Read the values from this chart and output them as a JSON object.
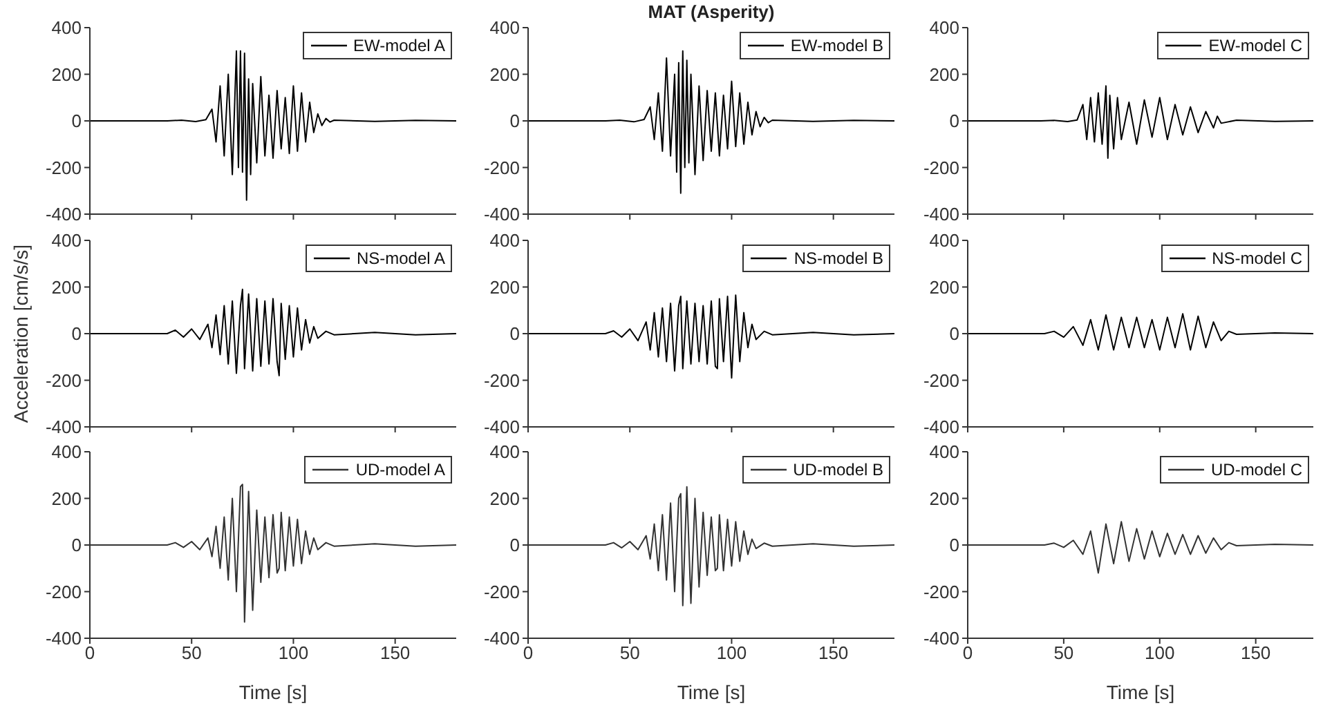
{
  "chart_data": [
    {
      "type": "line",
      "x": [
        0,
        38,
        45,
        52,
        57,
        60,
        62,
        64,
        66,
        68,
        70,
        72,
        73,
        74,
        75,
        76,
        77,
        78,
        79,
        80,
        82,
        84,
        86,
        88,
        90,
        92,
        94,
        96,
        98,
        100,
        102,
        104,
        106,
        108,
        110,
        112,
        114,
        116,
        118,
        120,
        140,
        160,
        180
      ],
      "series": [
        {
          "name": "EW-model A",
          "color": "#000000",
          "values": [
            0,
            0,
            3,
            -3,
            5,
            50,
            -90,
            150,
            -150,
            200,
            -230,
            300,
            -200,
            300,
            -220,
            290,
            -340,
            180,
            -230,
            160,
            -180,
            190,
            -150,
            110,
            -160,
            130,
            -120,
            100,
            -140,
            150,
            -130,
            120,
            -90,
            80,
            -50,
            30,
            -20,
            10,
            -5,
            3,
            -2,
            2,
            0
          ]
        }
      ],
      "xlim": [
        0,
        180
      ],
      "xticks": [
        0,
        50,
        100,
        150
      ],
      "ylim": [
        -400,
        400
      ],
      "yticks": [
        -400,
        -200,
        0,
        200,
        400
      ],
      "legend": "top right",
      "tick_labels": "y"
    },
    {
      "type": "line",
      "title": "MAT (Asperity)",
      "x": [
        0,
        38,
        45,
        52,
        57,
        60,
        62,
        64,
        66,
        68,
        70,
        72,
        73,
        74,
        75,
        76,
        77,
        78,
        79,
        80,
        82,
        84,
        86,
        88,
        90,
        92,
        94,
        96,
        98,
        100,
        102,
        104,
        106,
        108,
        110,
        112,
        114,
        116,
        118,
        120,
        140,
        160,
        180
      ],
      "series": [
        {
          "name": "EW-model B",
          "color": "#000000",
          "values": [
            0,
            0,
            3,
            -4,
            6,
            60,
            -80,
            120,
            -130,
            270,
            -150,
            200,
            -220,
            250,
            -310,
            300,
            -200,
            260,
            -180,
            200,
            -230,
            150,
            -170,
            130,
            -130,
            120,
            -150,
            110,
            -120,
            170,
            -110,
            120,
            -100,
            80,
            -60,
            40,
            -25,
            15,
            -8,
            3,
            -2,
            2,
            0
          ]
        }
      ],
      "xlim": [
        0,
        180
      ],
      "xticks": [
        0,
        50,
        100,
        150
      ],
      "ylim": [
        -400,
        400
      ],
      "yticks": [
        -400,
        -200,
        0,
        200,
        400
      ],
      "legend": "top right",
      "tick_labels": "y"
    },
    {
      "type": "line",
      "x": [
        0,
        38,
        45,
        52,
        57,
        60,
        62,
        64,
        66,
        68,
        70,
        72,
        73,
        74,
        76,
        78,
        80,
        84,
        88,
        92,
        96,
        100,
        104,
        108,
        112,
        116,
        120,
        124,
        128,
        130,
        132,
        140,
        160,
        180
      ],
      "series": [
        {
          "name": "EW-model C",
          "color": "#000000",
          "values": [
            0,
            0,
            2,
            -3,
            4,
            70,
            -80,
            100,
            -90,
            120,
            -100,
            150,
            -160,
            110,
            -120,
            100,
            -80,
            80,
            -100,
            90,
            -70,
            100,
            -80,
            70,
            -60,
            60,
            -50,
            40,
            -30,
            20,
            -10,
            3,
            -2,
            0
          ]
        }
      ],
      "xlim": [
        0,
        180
      ],
      "xticks": [
        0,
        50,
        100,
        150
      ],
      "ylim": [
        -400,
        400
      ],
      "yticks": [
        -400,
        -200,
        0,
        200,
        400
      ],
      "legend": "top right",
      "tick_labels": "y"
    },
    {
      "type": "line",
      "ylabel": "Acceleration [cm/s/s]",
      "x": [
        0,
        38,
        42,
        46,
        50,
        54,
        58,
        60,
        62,
        64,
        66,
        68,
        70,
        72,
        74,
        75,
        76,
        78,
        80,
        82,
        84,
        86,
        88,
        90,
        92,
        93,
        94,
        96,
        98,
        100,
        102,
        104,
        106,
        108,
        110,
        112,
        116,
        120,
        140,
        160,
        180
      ],
      "series": [
        {
          "name": "NS-model A",
          "color": "#000000",
          "values": [
            0,
            0,
            15,
            -15,
            20,
            -25,
            40,
            -60,
            80,
            -90,
            120,
            -130,
            140,
            -170,
            120,
            190,
            -150,
            170,
            -160,
            150,
            -140,
            140,
            -130,
            150,
            -120,
            -180,
            130,
            -110,
            120,
            -100,
            110,
            -70,
            60,
            -40,
            30,
            -20,
            10,
            -5,
            5,
            -5,
            0
          ]
        }
      ],
      "xlim": [
        0,
        180
      ],
      "xticks": [
        0,
        50,
        100,
        150
      ],
      "ylim": [
        -400,
        400
      ],
      "yticks": [
        -400,
        -200,
        0,
        200,
        400
      ],
      "legend": "top right",
      "tick_labels": "y"
    },
    {
      "type": "line",
      "x": [
        0,
        38,
        42,
        46,
        50,
        54,
        58,
        60,
        62,
        64,
        66,
        68,
        70,
        72,
        74,
        75,
        76,
        78,
        80,
        82,
        84,
        86,
        88,
        90,
        92,
        93,
        94,
        96,
        98,
        100,
        102,
        104,
        106,
        108,
        110,
        112,
        116,
        120,
        140,
        160,
        180
      ],
      "series": [
        {
          "name": "NS-model B",
          "color": "#000000",
          "values": [
            0,
            0,
            12,
            -15,
            20,
            -30,
            50,
            -70,
            90,
            -100,
            110,
            -120,
            130,
            -160,
            120,
            160,
            -150,
            140,
            -130,
            130,
            -120,
            120,
            -130,
            140,
            -140,
            -150,
            150,
            -120,
            160,
            -190,
            165,
            -120,
            90,
            -60,
            40,
            -25,
            10,
            -5,
            5,
            -5,
            0
          ]
        }
      ],
      "xlim": [
        0,
        180
      ],
      "xticks": [
        0,
        50,
        100,
        150
      ],
      "ylim": [
        -400,
        400
      ],
      "yticks": [
        -400,
        -200,
        0,
        200,
        400
      ],
      "legend": "top right",
      "tick_labels": "y"
    },
    {
      "type": "line",
      "x": [
        0,
        40,
        45,
        50,
        55,
        60,
        64,
        68,
        72,
        76,
        80,
        84,
        88,
        92,
        96,
        100,
        104,
        108,
        112,
        116,
        120,
        124,
        128,
        132,
        136,
        140,
        160,
        180
      ],
      "series": [
        {
          "name": "NS-model C",
          "color": "#000000",
          "values": [
            0,
            0,
            10,
            -15,
            30,
            -50,
            60,
            -70,
            80,
            -70,
            70,
            -60,
            70,
            -60,
            60,
            -70,
            70,
            -60,
            85,
            -70,
            75,
            -60,
            50,
            -30,
            10,
            -3,
            3,
            0
          ]
        }
      ],
      "xlim": [
        0,
        180
      ],
      "xticks": [
        0,
        50,
        100,
        150
      ],
      "ylim": [
        -400,
        400
      ],
      "yticks": [
        -400,
        -200,
        0,
        200,
        400
      ],
      "legend": "top right",
      "tick_labels": "y"
    },
    {
      "type": "line",
      "xlabel": "Time [s]",
      "x": [
        0,
        38,
        42,
        46,
        50,
        54,
        58,
        60,
        62,
        64,
        66,
        68,
        70,
        72,
        74,
        75,
        76,
        78,
        80,
        82,
        84,
        86,
        88,
        90,
        92,
        93,
        94,
        96,
        98,
        100,
        102,
        104,
        106,
        108,
        110,
        112,
        116,
        120,
        140,
        160,
        180
      ],
      "series": [
        {
          "name": "UD-model A",
          "color": "#333333",
          "values": [
            0,
            0,
            10,
            -10,
            15,
            -20,
            30,
            -50,
            80,
            -100,
            120,
            -150,
            200,
            -200,
            250,
            260,
            -330,
            230,
            -280,
            150,
            -160,
            120,
            -140,
            130,
            -120,
            -100,
            140,
            -110,
            120,
            -90,
            110,
            -80,
            60,
            -40,
            30,
            -20,
            10,
            -5,
            5,
            -5,
            0
          ]
        }
      ],
      "xlim": [
        0,
        180
      ],
      "xticks": [
        0,
        50,
        100,
        150
      ],
      "ylim": [
        -400,
        400
      ],
      "yticks": [
        -400,
        -200,
        0,
        200,
        400
      ],
      "legend": "top right"
    },
    {
      "type": "line",
      "xlabel": "Time [s]",
      "x": [
        0,
        38,
        42,
        46,
        50,
        54,
        58,
        60,
        62,
        64,
        66,
        68,
        70,
        72,
        74,
        75,
        76,
        78,
        80,
        82,
        84,
        86,
        88,
        90,
        92,
        93,
        94,
        96,
        98,
        100,
        102,
        104,
        106,
        108,
        110,
        112,
        116,
        120,
        140,
        160,
        180
      ],
      "series": [
        {
          "name": "UD-model B",
          "color": "#333333",
          "values": [
            0,
            0,
            10,
            -12,
            15,
            -20,
            40,
            -60,
            90,
            -110,
            130,
            -150,
            180,
            -200,
            200,
            220,
            -260,
            250,
            -250,
            200,
            -180,
            140,
            -130,
            120,
            -110,
            -100,
            130,
            -110,
            110,
            -90,
            100,
            -70,
            60,
            -40,
            25,
            -15,
            8,
            -5,
            5,
            -5,
            0
          ]
        }
      ],
      "xlim": [
        0,
        180
      ],
      "xticks": [
        0,
        50,
        100,
        150
      ],
      "ylim": [
        -400,
        400
      ],
      "yticks": [
        -400,
        -200,
        0,
        200,
        400
      ],
      "legend": "top right"
    },
    {
      "type": "line",
      "xlabel": "Time [s]",
      "x": [
        0,
        40,
        45,
        50,
        55,
        60,
        64,
        68,
        72,
        76,
        80,
        84,
        88,
        92,
        96,
        100,
        104,
        108,
        112,
        116,
        120,
        124,
        128,
        132,
        136,
        140,
        160,
        180
      ],
      "series": [
        {
          "name": "UD-model C",
          "color": "#333333",
          "values": [
            0,
            0,
            8,
            -10,
            20,
            -40,
            60,
            -120,
            90,
            -80,
            100,
            -70,
            70,
            -60,
            60,
            -50,
            50,
            -40,
            45,
            -40,
            40,
            -35,
            30,
            -20,
            10,
            -3,
            3,
            0
          ]
        }
      ],
      "xlim": [
        0,
        180
      ],
      "xticks": [
        0,
        50,
        100,
        150
      ],
      "ylim": [
        -400,
        400
      ],
      "yticks": [
        -400,
        -200,
        0,
        200,
        400
      ],
      "legend": "top right"
    }
  ]
}
